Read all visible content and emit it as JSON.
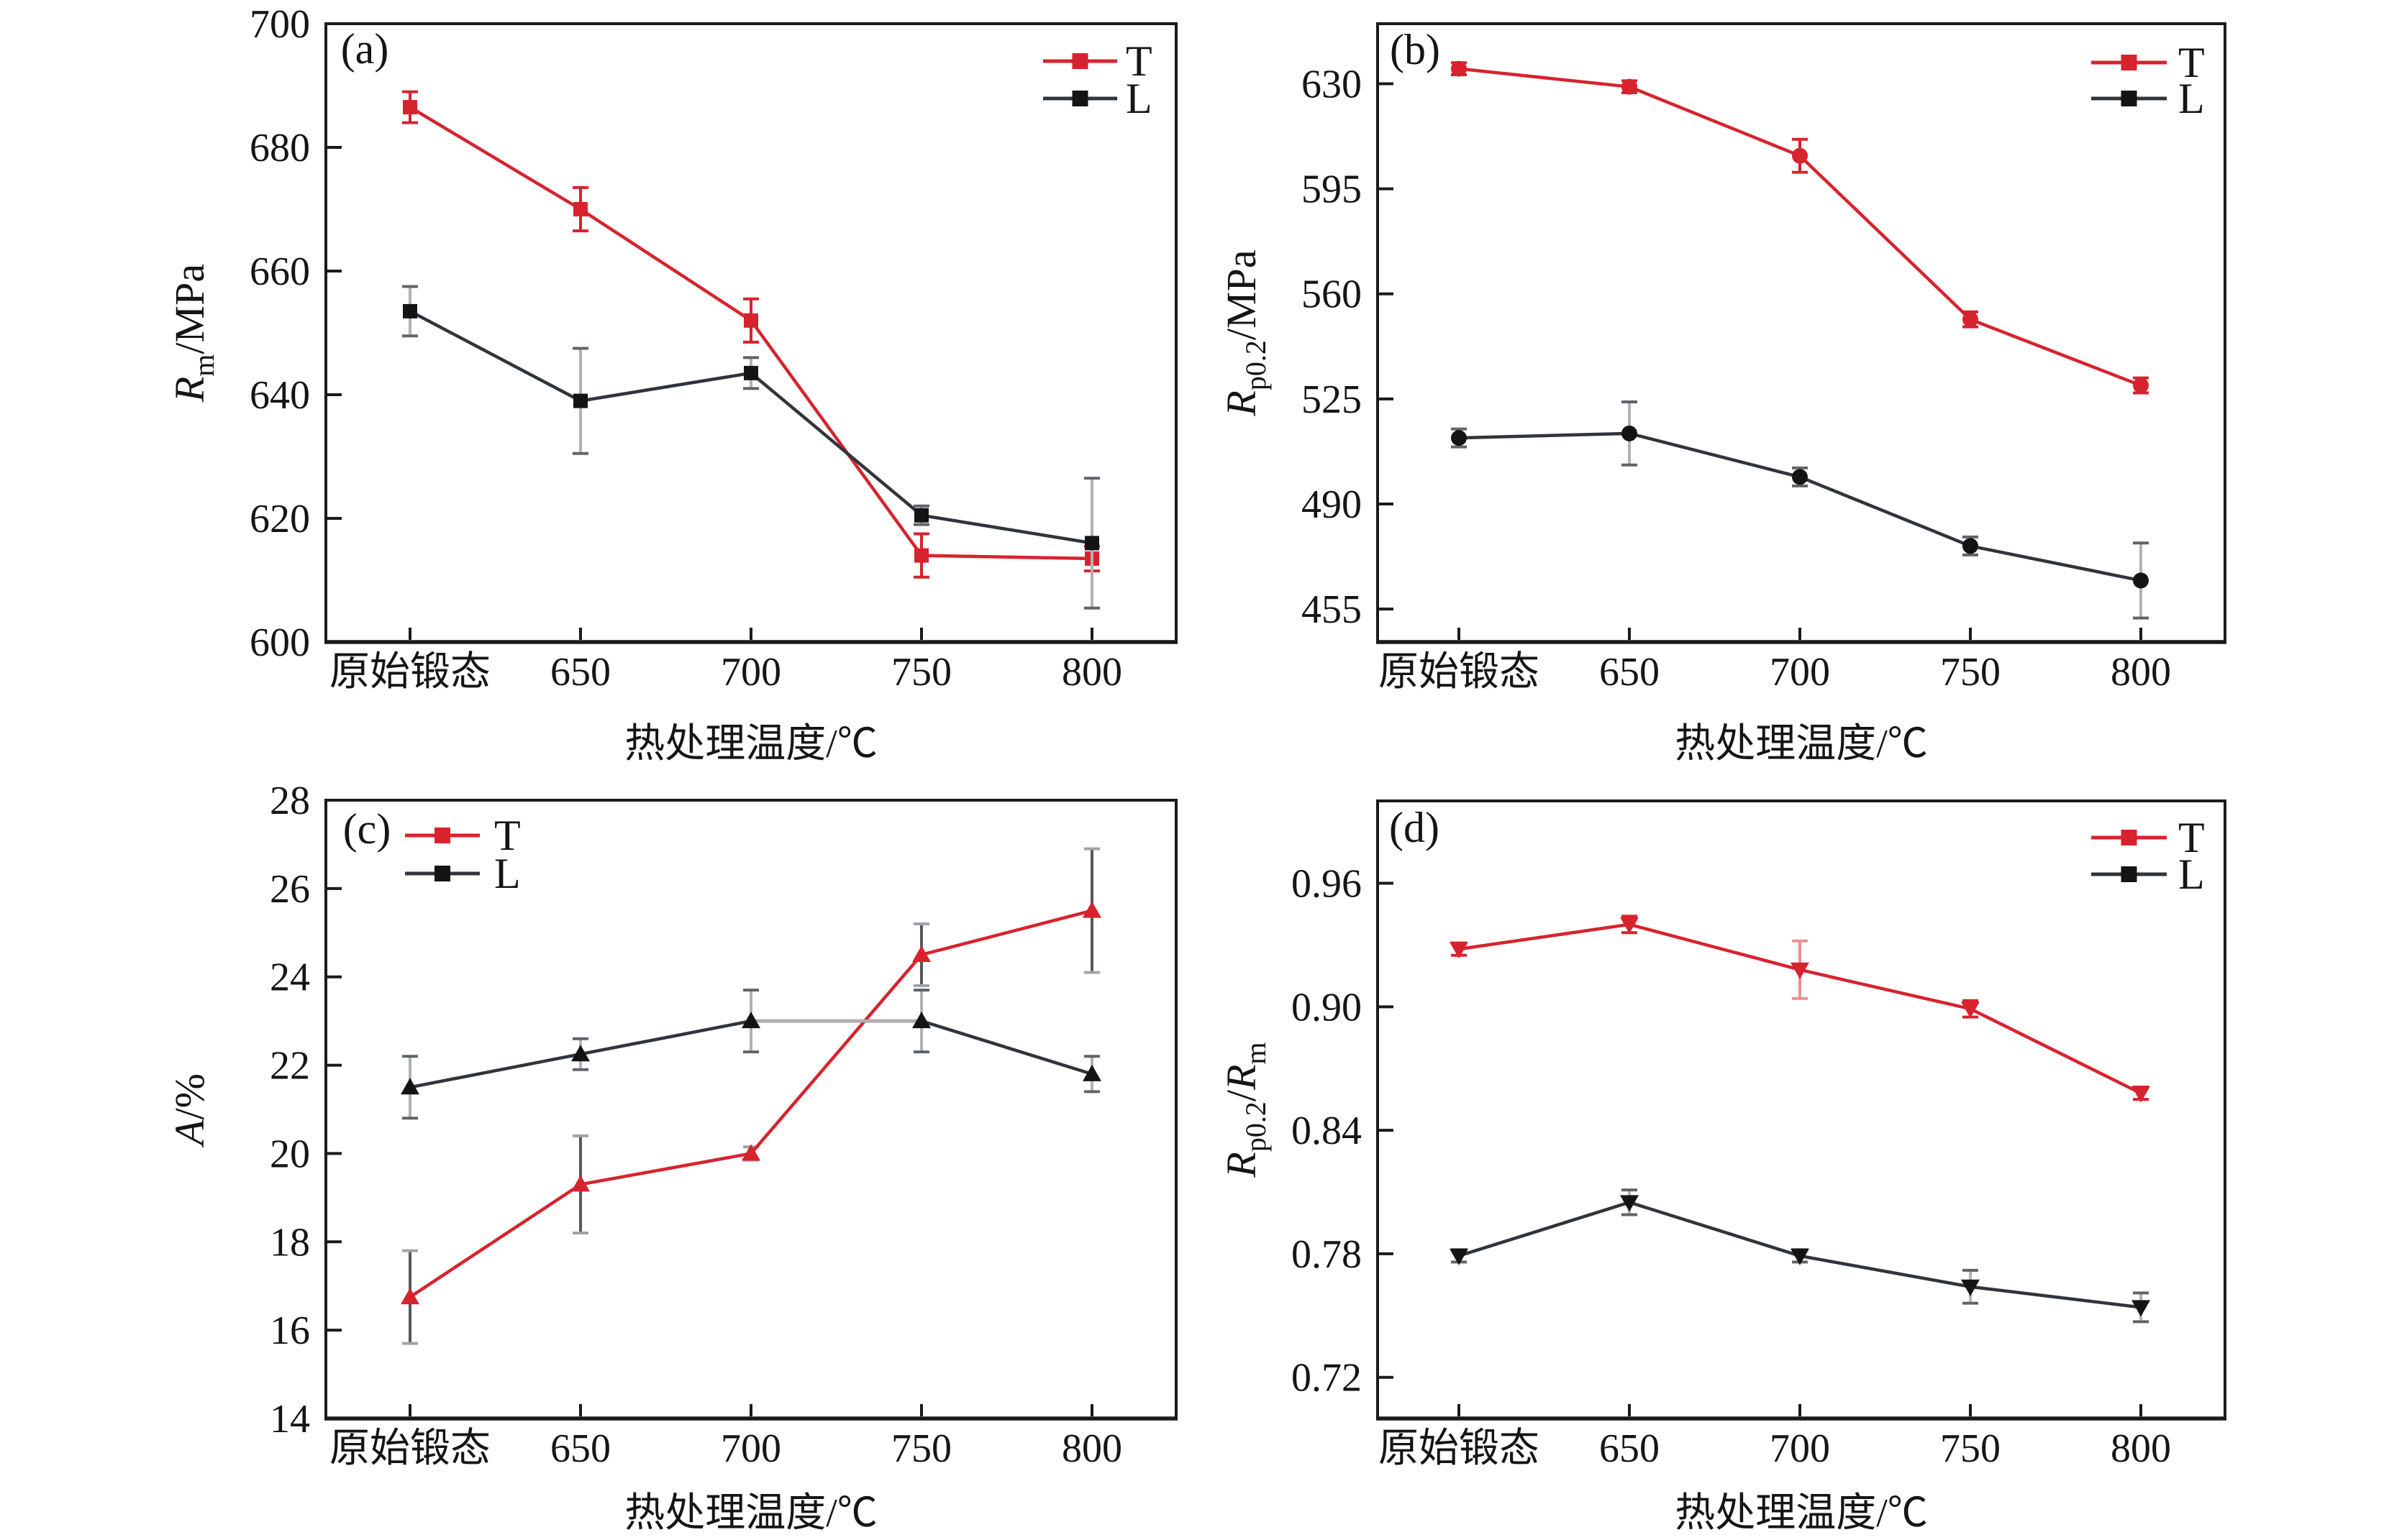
{
  "figure": {
    "background": "#ffffff"
  },
  "colors": {
    "t_red": "#d7232e",
    "l_line": "#30353b",
    "l_marker": "#141414",
    "err_gray_line": "#b2b2b2",
    "err_gray_cap": "#60646a",
    "c_t_err_line": "#53585e",
    "c_t_err_cap": "#a0a4a8",
    "d_t_err_light": "#eb9191",
    "frame": "#1a1a1a",
    "text": "#151515",
    "light_segment": "#b0b0b0"
  },
  "chart_data": [
    {
      "panel": "a",
      "type": "line",
      "letter": "(a)",
      "ylabel_parts": [
        {
          "t": "R",
          "italic": true
        },
        {
          "t": "m",
          "sub": true
        },
        {
          "t": "/MPa"
        }
      ],
      "xlabel": "热处理温度/℃",
      "categories": [
        "原始锻态",
        "650",
        "700",
        "750",
        "800"
      ],
      "ylim": [
        600,
        700
      ],
      "yticks": [
        {
          "v": 600,
          "label": "600"
        },
        {
          "v": 620,
          "label": "620"
        },
        {
          "v": 640,
          "label": "640"
        },
        {
          "v": 660,
          "label": "660"
        },
        {
          "v": 680,
          "label": "680"
        },
        {
          "v": 700,
          "label": "700"
        }
      ],
      "marker": "square",
      "legend_side": "right",
      "legend_labels": [
        "T",
        "L"
      ],
      "series": [
        {
          "name": "T",
          "values": [
            686.5,
            670,
            652,
            614,
            613.5
          ],
          "errors": [
            2.5,
            3.5,
            3.5,
            3.5,
            2
          ]
        },
        {
          "name": "L",
          "values": [
            653.5,
            639,
            643.5,
            620.5,
            616
          ],
          "errors": [
            4,
            8.5,
            2.5,
            1.5,
            10.5
          ]
        }
      ]
    },
    {
      "panel": "b",
      "type": "line",
      "letter": "(b)",
      "ylabel_parts": [
        {
          "t": "R",
          "italic": true
        },
        {
          "t": "p0.2",
          "sub": true
        },
        {
          "t": "/MPa"
        }
      ],
      "xlabel": "热处理温度/℃",
      "categories": [
        "原始锻态",
        "650",
        "700",
        "750",
        "800"
      ],
      "ylim": [
        444,
        650
      ],
      "yticks": [
        {
          "v": 455,
          "label": "455"
        },
        {
          "v": 490,
          "label": "490"
        },
        {
          "v": 525,
          "label": "525"
        },
        {
          "v": 560,
          "label": "560"
        },
        {
          "v": 595,
          "label": "595"
        },
        {
          "v": 630,
          "label": "630"
        }
      ],
      "marker": "circle",
      "legend_side": "right",
      "legend_labels": [
        "T",
        "L"
      ],
      "series": [
        {
          "name": "T",
          "values": [
            635,
            629,
            606,
            551.5,
            529.5
          ],
          "errors": [
            2,
            2,
            5.5,
            2.5,
            2.5
          ]
        },
        {
          "name": "L",
          "values": [
            512,
            513.5,
            499,
            476,
            464.5
          ],
          "errors": [
            3,
            10.5,
            3,
            3,
            12.5
          ]
        }
      ]
    },
    {
      "panel": "c",
      "type": "line",
      "letter": "(c)",
      "ylabel_parts": [
        {
          "t": "A",
          "italic": true
        },
        {
          "t": "/%"
        }
      ],
      "xlabel": "热处理温度/℃",
      "categories": [
        "原始锻态",
        "650",
        "700",
        "750",
        "800"
      ],
      "ylim": [
        14,
        28
      ],
      "yticks": [
        {
          "v": 14,
          "label": "14"
        },
        {
          "v": 16,
          "label": "16"
        },
        {
          "v": 18,
          "label": "18"
        },
        {
          "v": 20,
          "label": "20"
        },
        {
          "v": 22,
          "label": "22"
        },
        {
          "v": 24,
          "label": "24"
        },
        {
          "v": 26,
          "label": "26"
        },
        {
          "v": 28,
          "label": "28"
        }
      ],
      "marker": "triangle-up",
      "legend_side": "left",
      "legend_labels": [
        "T",
        "L"
      ],
      "series": [
        {
          "name": "T",
          "values": [
            16.75,
            19.3,
            20.0,
            24.5,
            25.5
          ],
          "errors": [
            1.05,
            1.1,
            0.15,
            0.7,
            1.4
          ],
          "err_style": "dark"
        },
        {
          "name": "L",
          "values": [
            21.5,
            22.25,
            23.0,
            23.0,
            21.8
          ],
          "errors": [
            0.7,
            0.35,
            0.7,
            0.7,
            0.4
          ],
          "light_segments": [
            [
              2,
              3
            ]
          ]
        }
      ]
    },
    {
      "panel": "d",
      "type": "line",
      "letter": "(d)",
      "ylabel_parts": [
        {
          "t": "R",
          "italic": true
        },
        {
          "t": "p0.2",
          "sub": true
        },
        {
          "t": "/"
        },
        {
          "t": "R",
          "italic": true
        },
        {
          "t": "m",
          "sub": true
        }
      ],
      "xlabel": "热处理温度/℃",
      "categories": [
        "原始锻态",
        "650",
        "700",
        "750",
        "800"
      ],
      "ylim": [
        0.7,
        1.0
      ],
      "yticks": [
        {
          "v": 0.72,
          "label": "0.72"
        },
        {
          "v": 0.78,
          "label": "0.78"
        },
        {
          "v": 0.84,
          "label": "0.84"
        },
        {
          "v": 0.9,
          "label": "0.90"
        },
        {
          "v": 0.96,
          "label": "0.96"
        }
      ],
      "marker": "triangle-down",
      "legend_side": "right",
      "legend_labels": [
        "T",
        "L"
      ],
      "series": [
        {
          "name": "T",
          "values": [
            0.928,
            0.94,
            0.918,
            0.899,
            0.858
          ],
          "errors": [
            0.003,
            0.004,
            0.014,
            0.004,
            0.003
          ],
          "err_light_points": [
            2
          ]
        },
        {
          "name": "L",
          "values": [
            0.779,
            0.805,
            0.779,
            0.764,
            0.754
          ],
          "errors": [
            0.003,
            0.006,
            0.003,
            0.008,
            0.007
          ]
        }
      ]
    }
  ]
}
